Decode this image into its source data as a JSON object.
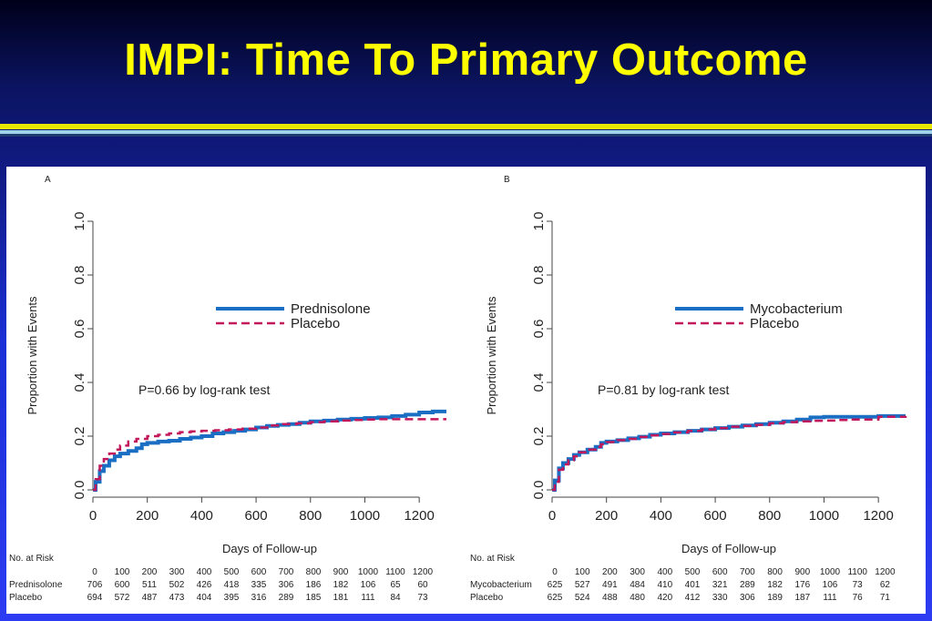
{
  "slide": {
    "title": "IMPI: Time To Primary Outcome"
  },
  "chart_data": [
    {
      "type": "line",
      "panel_label": "A",
      "xlabel": "Days of Follow-up",
      "ylabel": "Proportion with Events",
      "xlim": [
        0,
        1300
      ],
      "ylim": [
        0,
        1.0
      ],
      "xticks": [
        "0",
        "200",
        "400",
        "600",
        "800",
        "1000",
        "1200"
      ],
      "yticks": [
        "0.0",
        "0.2",
        "0.4",
        "0.6",
        "0.8",
        "1.0"
      ],
      "annotation": "P=0.66 by log-rank test",
      "legend_position": "upper-center",
      "series": [
        {
          "name": "Prednisolone",
          "color": "#1a6fc4",
          "style": "solid",
          "points": [
            [
              0,
              0
            ],
            [
              10,
              0.03
            ],
            [
              25,
              0.07
            ],
            [
              40,
              0.09
            ],
            [
              60,
              0.11
            ],
            [
              80,
              0.125
            ],
            [
              100,
              0.135
            ],
            [
              130,
              0.145
            ],
            [
              160,
              0.155
            ],
            [
              180,
              0.17
            ],
            [
              200,
              0.175
            ],
            [
              240,
              0.18
            ],
            [
              280,
              0.183
            ],
            [
              320,
              0.19
            ],
            [
              360,
              0.195
            ],
            [
              400,
              0.2
            ],
            [
              440,
              0.21
            ],
            [
              480,
              0.215
            ],
            [
              520,
              0.22
            ],
            [
              560,
              0.225
            ],
            [
              600,
              0.232
            ],
            [
              640,
              0.238
            ],
            [
              680,
              0.242
            ],
            [
              720,
              0.245
            ],
            [
              760,
              0.25
            ],
            [
              800,
              0.255
            ],
            [
              850,
              0.258
            ],
            [
              900,
              0.262
            ],
            [
              950,
              0.265
            ],
            [
              1000,
              0.268
            ],
            [
              1050,
              0.27
            ],
            [
              1100,
              0.275
            ],
            [
              1150,
              0.28
            ],
            [
              1200,
              0.288
            ],
            [
              1250,
              0.292
            ],
            [
              1300,
              0.292
            ]
          ]
        },
        {
          "name": "Placebo",
          "color": "#c2185b",
          "style": "dashed",
          "points": [
            [
              0,
              0
            ],
            [
              10,
              0.04
            ],
            [
              25,
              0.09
            ],
            [
              40,
              0.115
            ],
            [
              60,
              0.135
            ],
            [
              80,
              0.15
            ],
            [
              100,
              0.165
            ],
            [
              130,
              0.18
            ],
            [
              160,
              0.19
            ],
            [
              200,
              0.2
            ],
            [
              240,
              0.205
            ],
            [
              280,
              0.21
            ],
            [
              320,
              0.215
            ],
            [
              360,
              0.218
            ],
            [
              400,
              0.22
            ],
            [
              450,
              0.222
            ],
            [
              500,
              0.225
            ],
            [
              550,
              0.228
            ],
            [
              600,
              0.232
            ],
            [
              650,
              0.24
            ],
            [
              700,
              0.245
            ],
            [
              750,
              0.248
            ],
            [
              800,
              0.252
            ],
            [
              850,
              0.255
            ],
            [
              900,
              0.258
            ],
            [
              950,
              0.26
            ],
            [
              1000,
              0.262
            ],
            [
              1050,
              0.263
            ],
            [
              1100,
              0.263
            ],
            [
              1200,
              0.263
            ],
            [
              1300,
              0.263
            ]
          ]
        }
      ],
      "risk_table": {
        "header_label": "No. at Risk",
        "days": [
          "0",
          "100",
          "200",
          "300",
          "400",
          "500",
          "600",
          "700",
          "800",
          "900",
          "1000",
          "1100",
          "1200"
        ],
        "rows": [
          {
            "label": "Prednisolone",
            "values": [
              "706",
              "600",
              "511",
              "502",
              "426",
              "418",
              "335",
              "306",
              "186",
              "182",
              "106",
              "65",
              "60"
            ]
          },
          {
            "label": "Placebo",
            "values": [
              "694",
              "572",
              "487",
              "473",
              "404",
              "395",
              "316",
              "289",
              "185",
              "181",
              "111",
              "84",
              "73"
            ]
          }
        ]
      }
    },
    {
      "type": "line",
      "panel_label": "B",
      "xlabel": "Days of Follow-up",
      "ylabel": "Proportion with Events",
      "xlim": [
        0,
        1300
      ],
      "ylim": [
        0,
        1.0
      ],
      "xticks": [
        "0",
        "200",
        "400",
        "600",
        "800",
        "1000",
        "1200"
      ],
      "yticks": [
        "0.0",
        "0.2",
        "0.4",
        "0.6",
        "0.8",
        "1.0"
      ],
      "annotation": "P=0.81 by log-rank test",
      "legend_position": "upper-center",
      "series": [
        {
          "name": "Mycobacterium",
          "color": "#1a6fc4",
          "style": "solid",
          "points": [
            [
              0,
              0
            ],
            [
              10,
              0.035
            ],
            [
              25,
              0.08
            ],
            [
              40,
              0.1
            ],
            [
              60,
              0.115
            ],
            [
              80,
              0.13
            ],
            [
              100,
              0.14
            ],
            [
              130,
              0.15
            ],
            [
              160,
              0.16
            ],
            [
              180,
              0.175
            ],
            [
              200,
              0.18
            ],
            [
              240,
              0.185
            ],
            [
              280,
              0.192
            ],
            [
              320,
              0.198
            ],
            [
              360,
              0.205
            ],
            [
              400,
              0.21
            ],
            [
              450,
              0.215
            ],
            [
              500,
              0.22
            ],
            [
              550,
              0.225
            ],
            [
              600,
              0.23
            ],
            [
              650,
              0.235
            ],
            [
              700,
              0.24
            ],
            [
              750,
              0.245
            ],
            [
              800,
              0.25
            ],
            [
              850,
              0.255
            ],
            [
              900,
              0.262
            ],
            [
              950,
              0.27
            ],
            [
              1000,
              0.272
            ],
            [
              1050,
              0.272
            ],
            [
              1100,
              0.272
            ],
            [
              1200,
              0.275
            ],
            [
              1300,
              0.275
            ]
          ]
        },
        {
          "name": "Placebo",
          "color": "#c2185b",
          "style": "dashed",
          "points": [
            [
              0,
              0
            ],
            [
              10,
              0.03
            ],
            [
              25,
              0.075
            ],
            [
              40,
              0.095
            ],
            [
              60,
              0.11
            ],
            [
              80,
              0.125
            ],
            [
              100,
              0.14
            ],
            [
              130,
              0.15
            ],
            [
              160,
              0.16
            ],
            [
              180,
              0.17
            ],
            [
              200,
              0.178
            ],
            [
              240,
              0.185
            ],
            [
              280,
              0.19
            ],
            [
              320,
              0.197
            ],
            [
              360,
              0.203
            ],
            [
              400,
              0.208
            ],
            [
              450,
              0.214
            ],
            [
              500,
              0.22
            ],
            [
              550,
              0.225
            ],
            [
              600,
              0.23
            ],
            [
              650,
              0.235
            ],
            [
              700,
              0.238
            ],
            [
              750,
              0.242
            ],
            [
              800,
              0.248
            ],
            [
              850,
              0.252
            ],
            [
              900,
              0.255
            ],
            [
              950,
              0.257
            ],
            [
              1000,
              0.258
            ],
            [
              1050,
              0.26
            ],
            [
              1100,
              0.262
            ],
            [
              1200,
              0.272
            ],
            [
              1300,
              0.275
            ]
          ]
        }
      ],
      "risk_table": {
        "header_label": "No. at Risk",
        "days": [
          "0",
          "100",
          "200",
          "300",
          "400",
          "500",
          "600",
          "700",
          "800",
          "900",
          "1000",
          "1100",
          "1200"
        ],
        "rows": [
          {
            "label": "Mycobacterium",
            "values": [
              "625",
              "527",
              "491",
              "484",
              "410",
              "401",
              "321",
              "289",
              "182",
              "176",
              "106",
              "73",
              "62"
            ]
          },
          {
            "label": "Placebo",
            "values": [
              "625",
              "524",
              "488",
              "480",
              "420",
              "412",
              "330",
              "306",
              "189",
              "187",
              "111",
              "76",
              "71"
            ]
          }
        ]
      }
    }
  ]
}
